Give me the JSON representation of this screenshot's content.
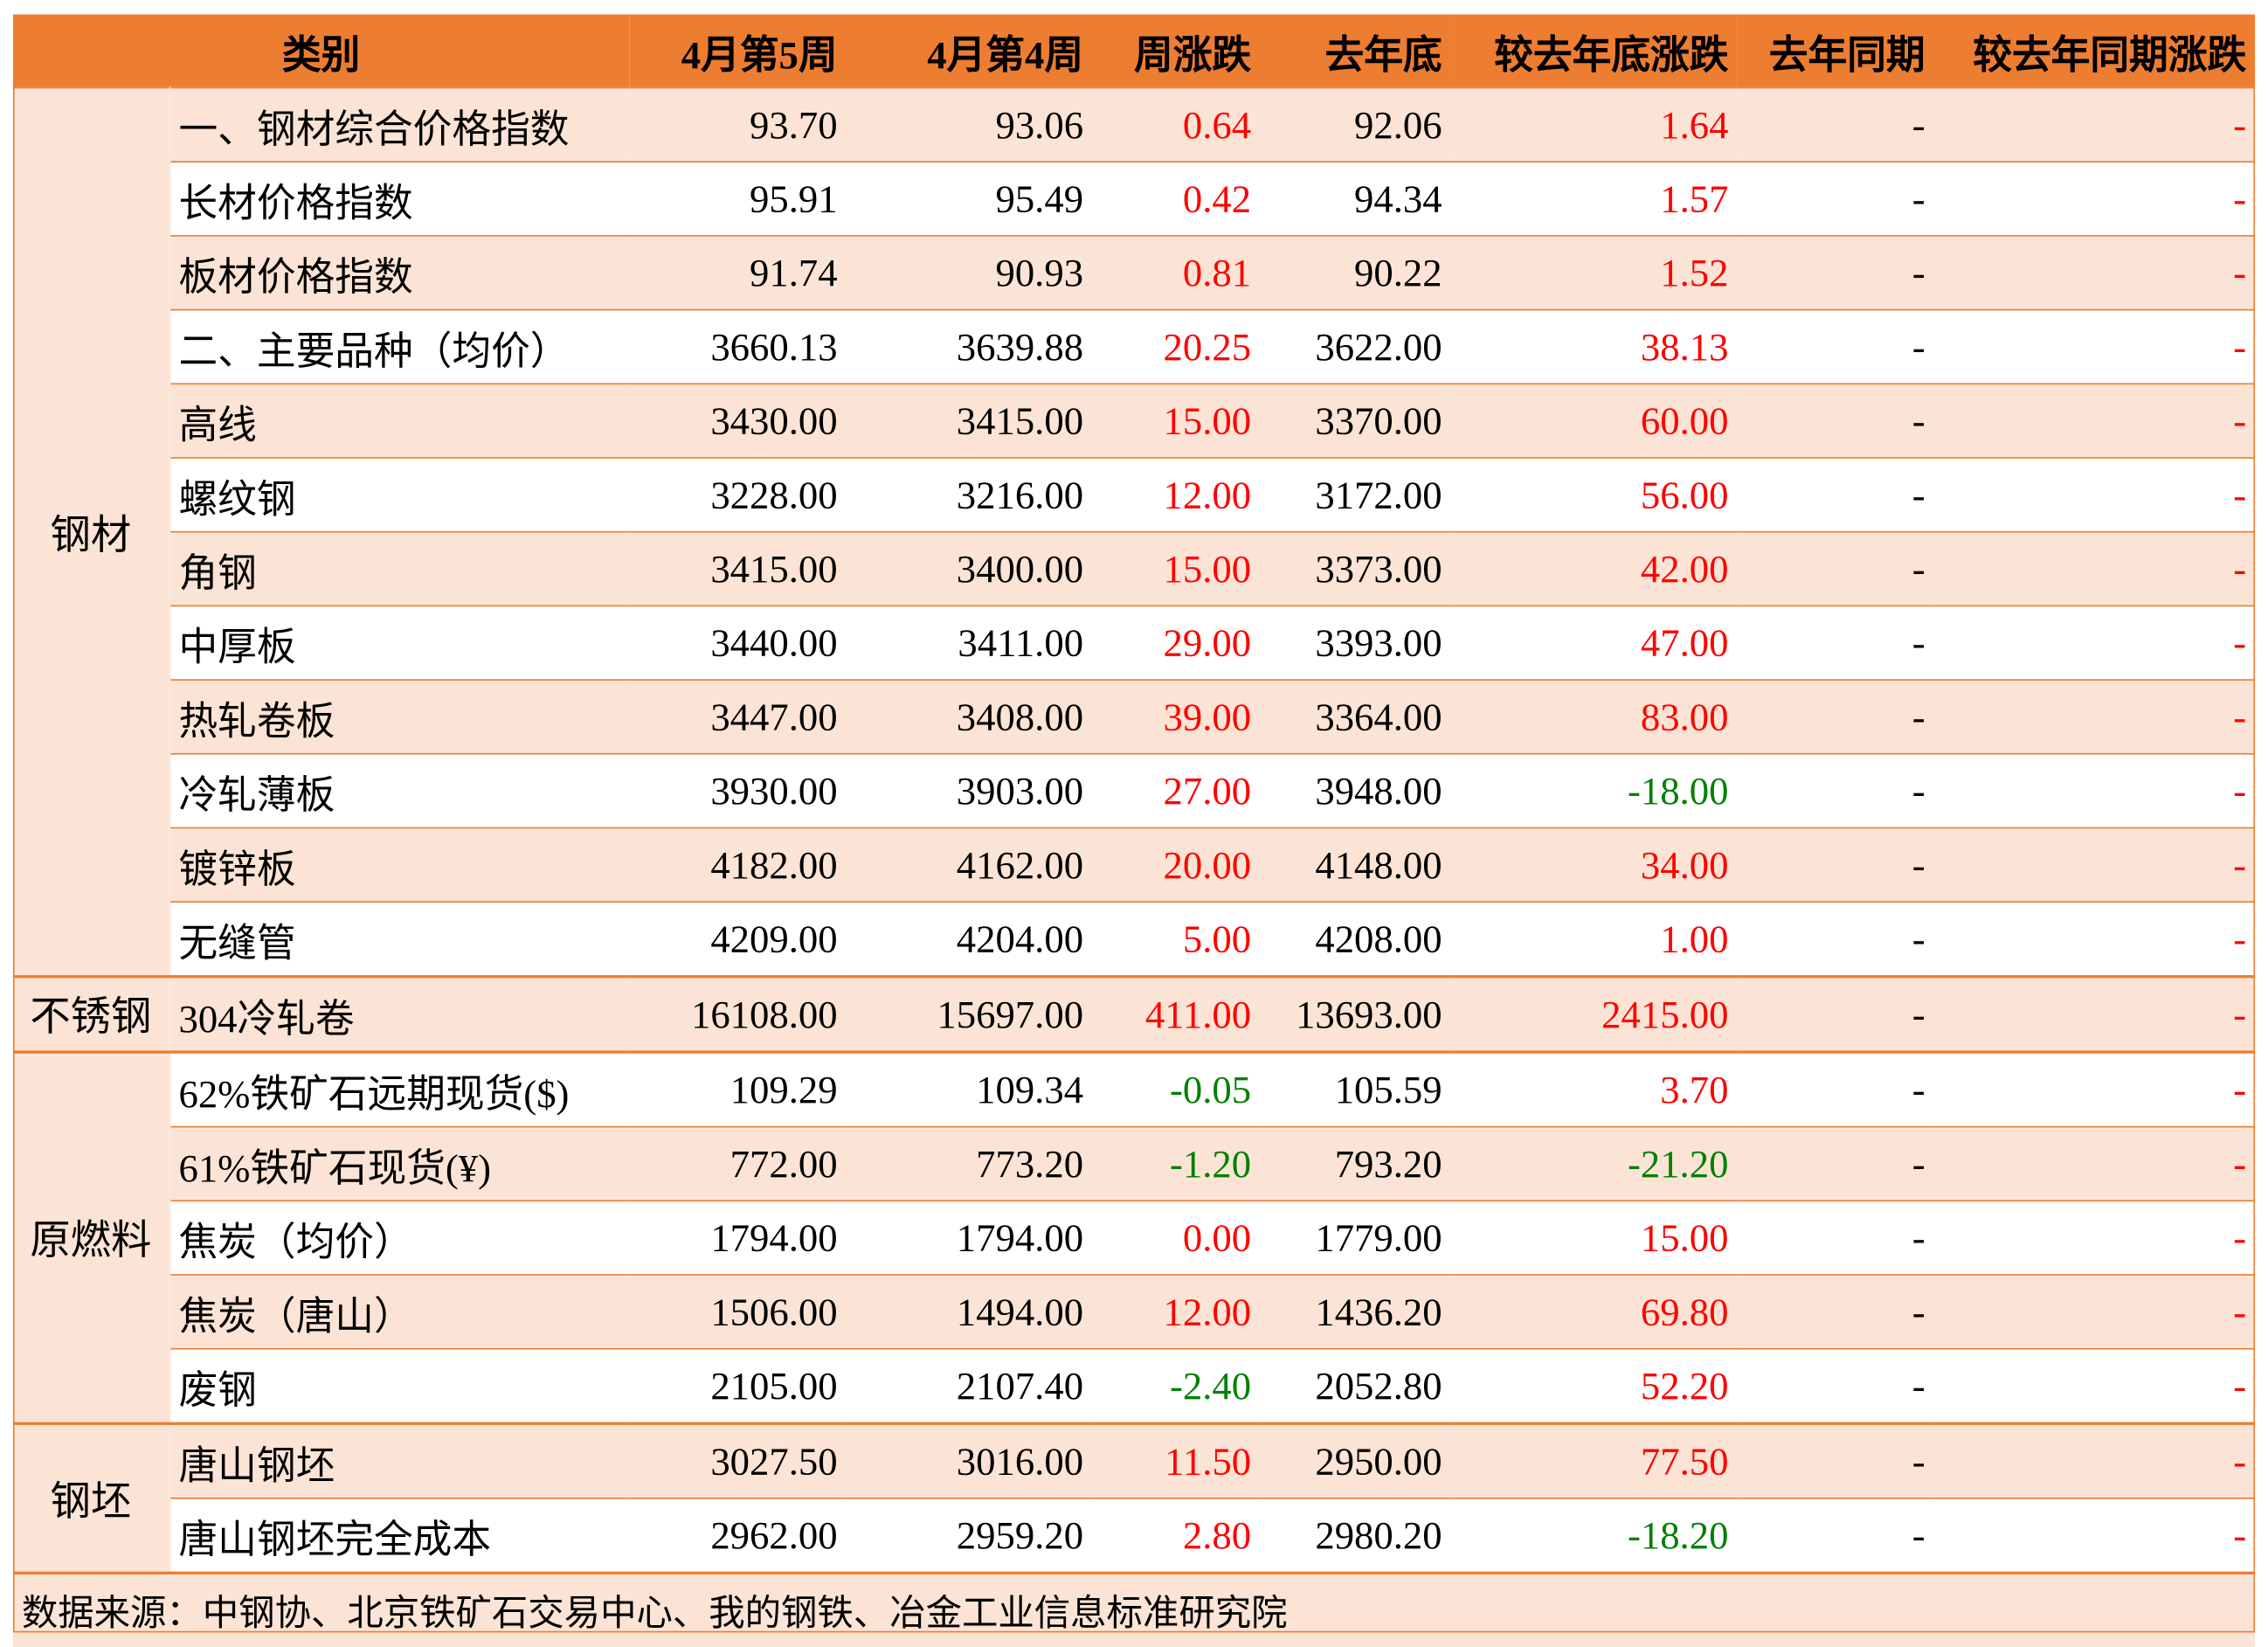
{
  "headers": [
    "类别",
    "4月第5周",
    "4月第4周",
    "周涨跌",
    "去年底",
    "较去年底涨跌",
    "去年同期",
    "较去年同期涨跌"
  ],
  "header_first_blank": "",
  "groups": [
    {
      "category": "钢材",
      "rows": [
        {
          "name": "一、钢材综合价格指数",
          "w5": "93.70",
          "w4": "93.06",
          "wchg": "0.64",
          "wchg_dir": "up",
          "ly_end": "92.06",
          "ly_chg": "1.64",
          "ly_chg_dir": "up",
          "ly_same": "-",
          "ly_same_chg": "-"
        },
        {
          "name": "长材价格指数",
          "w5": "95.91",
          "w4": "95.49",
          "wchg": "0.42",
          "wchg_dir": "up",
          "ly_end": "94.34",
          "ly_chg": "1.57",
          "ly_chg_dir": "up",
          "ly_same": "-",
          "ly_same_chg": "-"
        },
        {
          "name": "板材价格指数",
          "w5": "91.74",
          "w4": "90.93",
          "wchg": "0.81",
          "wchg_dir": "up",
          "ly_end": "90.22",
          "ly_chg": "1.52",
          "ly_chg_dir": "up",
          "ly_same": "-",
          "ly_same_chg": "-"
        },
        {
          "name": "二、主要品种（均价）",
          "w5": "3660.13",
          "w4": "3639.88",
          "wchg": "20.25",
          "wchg_dir": "up",
          "ly_end": "3622.00",
          "ly_chg": "38.13",
          "ly_chg_dir": "up",
          "ly_same": "-",
          "ly_same_chg": "-"
        },
        {
          "name": "高线",
          "w5": "3430.00",
          "w4": "3415.00",
          "wchg": "15.00",
          "wchg_dir": "up",
          "ly_end": "3370.00",
          "ly_chg": "60.00",
          "ly_chg_dir": "up",
          "ly_same": "-",
          "ly_same_chg": "-"
        },
        {
          "name": "螺纹钢",
          "w5": "3228.00",
          "w4": "3216.00",
          "wchg": "12.00",
          "wchg_dir": "up",
          "ly_end": "3172.00",
          "ly_chg": "56.00",
          "ly_chg_dir": "up",
          "ly_same": "-",
          "ly_same_chg": "-"
        },
        {
          "name": "角钢",
          "w5": "3415.00",
          "w4": "3400.00",
          "wchg": "15.00",
          "wchg_dir": "up",
          "ly_end": "3373.00",
          "ly_chg": "42.00",
          "ly_chg_dir": "up",
          "ly_same": "-",
          "ly_same_chg": "-"
        },
        {
          "name": "中厚板",
          "w5": "3440.00",
          "w4": "3411.00",
          "wchg": "29.00",
          "wchg_dir": "up",
          "ly_end": "3393.00",
          "ly_chg": "47.00",
          "ly_chg_dir": "up",
          "ly_same": "-",
          "ly_same_chg": "-"
        },
        {
          "name": "热轧卷板",
          "w5": "3447.00",
          "w4": "3408.00",
          "wchg": "39.00",
          "wchg_dir": "up",
          "ly_end": "3364.00",
          "ly_chg": "83.00",
          "ly_chg_dir": "up",
          "ly_same": "-",
          "ly_same_chg": "-"
        },
        {
          "name": "冷轧薄板",
          "w5": "3930.00",
          "w4": "3903.00",
          "wchg": "27.00",
          "wchg_dir": "up",
          "ly_end": "3948.00",
          "ly_chg": "-18.00",
          "ly_chg_dir": "down",
          "ly_same": "-",
          "ly_same_chg": "-"
        },
        {
          "name": "镀锌板",
          "w5": "4182.00",
          "w4": "4162.00",
          "wchg": "20.00",
          "wchg_dir": "up",
          "ly_end": "4148.00",
          "ly_chg": "34.00",
          "ly_chg_dir": "up",
          "ly_same": "-",
          "ly_same_chg": "-"
        },
        {
          "name": "无缝管",
          "w5": "4209.00",
          "w4": "4204.00",
          "wchg": "5.00",
          "wchg_dir": "up",
          "ly_end": "4208.00",
          "ly_chg": "1.00",
          "ly_chg_dir": "up",
          "ly_same": "-",
          "ly_same_chg": "-"
        }
      ]
    },
    {
      "category": "不锈钢",
      "rows": [
        {
          "name": "304冷轧卷",
          "w5": "16108.00",
          "w4": "15697.00",
          "wchg": "411.00",
          "wchg_dir": "up",
          "ly_end": "13693.00",
          "ly_chg": "2415.00",
          "ly_chg_dir": "up",
          "ly_same": "-",
          "ly_same_chg": "-"
        }
      ]
    },
    {
      "category": "原燃料",
      "rows": [
        {
          "name": "62%铁矿石远期现货($)",
          "w5": "109.29",
          "w4": "109.34",
          "wchg": "-0.05",
          "wchg_dir": "down",
          "ly_end": "105.59",
          "ly_chg": "3.70",
          "ly_chg_dir": "up",
          "ly_same": "-",
          "ly_same_chg": "-"
        },
        {
          "name": "61%铁矿石现货(¥)",
          "w5": "772.00",
          "w4": "773.20",
          "wchg": "-1.20",
          "wchg_dir": "down",
          "ly_end": "793.20",
          "ly_chg": "-21.20",
          "ly_chg_dir": "down",
          "ly_same": "-",
          "ly_same_chg": "-"
        },
        {
          "name": "焦炭（均价）",
          "w5": "1794.00",
          "w4": "1794.00",
          "wchg": "0.00",
          "wchg_dir": "up",
          "ly_end": "1779.00",
          "ly_chg": "15.00",
          "ly_chg_dir": "up",
          "ly_same": "-",
          "ly_same_chg": "-"
        },
        {
          "name": "焦炭（唐山）",
          "w5": "1506.00",
          "w4": "1494.00",
          "wchg": "12.00",
          "wchg_dir": "up",
          "ly_end": "1436.20",
          "ly_chg": "69.80",
          "ly_chg_dir": "up",
          "ly_same": "-",
          "ly_same_chg": "-"
        },
        {
          "name": "废钢",
          "w5": "2105.00",
          "w4": "2107.40",
          "wchg": "-2.40",
          "wchg_dir": "down",
          "ly_end": "2052.80",
          "ly_chg": "52.20",
          "ly_chg_dir": "up",
          "ly_same": "-",
          "ly_same_chg": "-"
        }
      ]
    },
    {
      "category": "钢坯",
      "rows": [
        {
          "name": "唐山钢坯",
          "w5": "3027.50",
          "w4": "3016.00",
          "wchg": "11.50",
          "wchg_dir": "up",
          "ly_end": "2950.00",
          "ly_chg": "77.50",
          "ly_chg_dir": "up",
          "ly_same": "-",
          "ly_same_chg": "-"
        },
        {
          "name": "唐山钢坯完全成本",
          "w5": "2962.00",
          "w4": "2959.20",
          "wchg": "2.80",
          "wchg_dir": "up",
          "ly_end": "2980.20",
          "ly_chg": "-18.20",
          "ly_chg_dir": "down",
          "ly_same": "-",
          "ly_same_chg": "-"
        }
      ]
    }
  ],
  "source": "数据来源：中钢协、北京铁矿石交易中心、我的钢铁、冶金工业信息标准研究院",
  "colors": {
    "header": "#ED7D31",
    "band": "#FBE4D5",
    "up": "#FF0000",
    "down": "#008000"
  }
}
